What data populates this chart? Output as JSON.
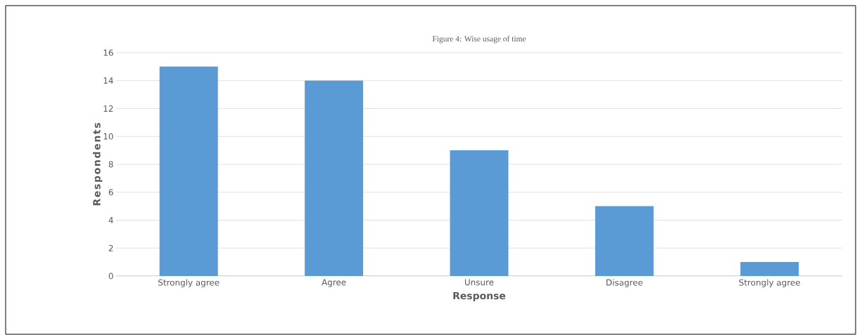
{
  "chart_data": {
    "type": "bar",
    "title": "Figure 4: Wise usage of time",
    "xlabel": "Response",
    "ylabel": "Respondents",
    "categories": [
      "Strongly agree",
      "Agree",
      "Unsure",
      "Disagree",
      "Strongly agree"
    ],
    "values": [
      15,
      14,
      9,
      5,
      1
    ],
    "color": "#5b9bd5",
    "ylim": [
      0,
      16
    ],
    "yticks": [
      0,
      2,
      4,
      6,
      8,
      10,
      12,
      14,
      16
    ],
    "grid": "y"
  }
}
